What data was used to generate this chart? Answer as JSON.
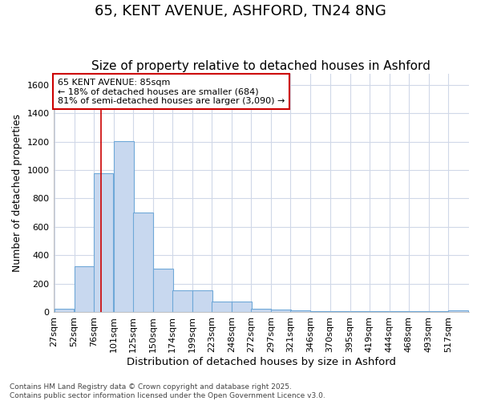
{
  "title": "65, KENT AVENUE, ASHFORD, TN24 8NG",
  "subtitle": "Size of property relative to detached houses in Ashford",
  "xlabel": "Distribution of detached houses by size in Ashford",
  "ylabel": "Number of detached properties",
  "bins": [
    27,
    52,
    76,
    101,
    125,
    150,
    174,
    199,
    223,
    248,
    272,
    297,
    321,
    346,
    370,
    395,
    419,
    444,
    468,
    493,
    517
  ],
  "values": [
    20,
    320,
    975,
    1205,
    700,
    305,
    150,
    150,
    75,
    75,
    20,
    15,
    10,
    5,
    4,
    3,
    3,
    3,
    3,
    3,
    10
  ],
  "bar_color": "#c8d8ef",
  "bar_edge_color": "#6fa8d8",
  "red_line_x": 85,
  "annotation_title": "65 KENT AVENUE: 85sqm",
  "annotation_line1": "← 18% of detached houses are smaller (684)",
  "annotation_line2": "81% of semi-detached houses are larger (3,090) →",
  "annotation_box_color": "#ffffff",
  "annotation_box_edge": "#cc0000",
  "red_line_color": "#cc0000",
  "ylim": [
    0,
    1680
  ],
  "yticks": [
    0,
    200,
    400,
    600,
    800,
    1000,
    1200,
    1400,
    1600
  ],
  "footer1": "Contains HM Land Registry data © Crown copyright and database right 2025.",
  "footer2": "Contains public sector information licensed under the Open Government Licence v3.0.",
  "bg_color": "#ffffff",
  "grid_color": "#d0d8e8",
  "title_fontsize": 13,
  "subtitle_fontsize": 11,
  "tick_label_size": 8,
  "ylabel_fontsize": 9,
  "xlabel_fontsize": 9.5
}
